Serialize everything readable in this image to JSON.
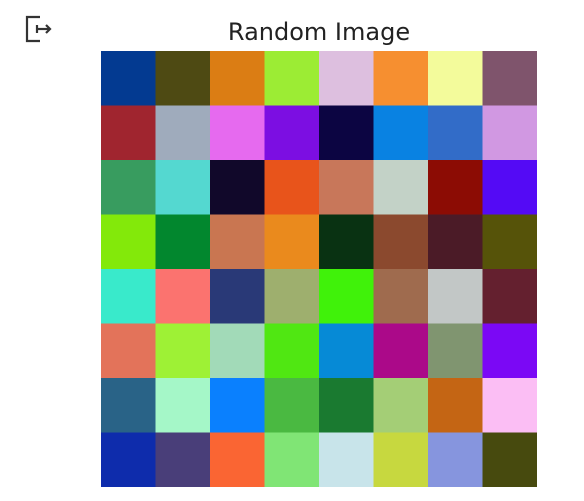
{
  "output_icon": "output-redirect-icon",
  "chart_data": {
    "type": "heatmap",
    "title": "Random Image",
    "rows": 8,
    "cols": 8,
    "axes": "off",
    "cells": [
      [
        "#033a91",
        "#4e4a13",
        "#db7d14",
        "#9cec34",
        "#ddbfdf",
        "#f68f30",
        "#f3fb9b",
        "#7f546c"
      ],
      [
        "#a0252f",
        "#9fabbc",
        "#e66aef",
        "#7c0ee2",
        "#0c0542",
        "#0982e2",
        "#326cc8",
        "#d198e2"
      ],
      [
        "#389c5f",
        "#54d8d0",
        "#11082a",
        "#e8541b",
        "#c8775a",
        "#c3d2c7",
        "#8c0c04",
        "#540af5"
      ],
      [
        "#83e90a",
        "#02872e",
        "#c97651",
        "#ea8a1d",
        "#093212",
        "#8b492e",
        "#4b1b27",
        "#565309"
      ],
      [
        "#39eacb",
        "#fb736f",
        "#293977",
        "#9eaf6e",
        "#40f20a",
        "#9f6b4e",
        "#c2c7c6",
        "#64202f"
      ],
      [
        "#e3735a",
        "#9ef135",
        "#a2dab8",
        "#50e712",
        "#068ad6",
        "#ab0989",
        "#809570",
        "#7b08f5"
      ],
      [
        "#296387",
        "#a5f7c8",
        "#0a80fe",
        "#4ab941",
        "#1a7a30",
        "#a4ce76",
        "#c46514",
        "#fbbef4"
      ],
      [
        "#0e2cac",
        "#493e79",
        "#fa6533",
        "#80e575",
        "#c8e4ea",
        "#c7d83f",
        "#8695de",
        "#474a0e"
      ]
    ]
  }
}
